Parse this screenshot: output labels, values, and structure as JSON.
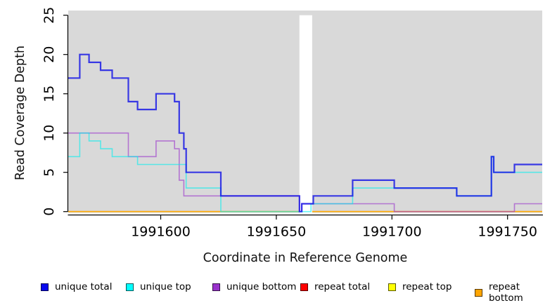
{
  "chart_data": {
    "type": "line",
    "subtype": "step-coverage-plot",
    "title": "",
    "xlabel": "Coordinate in Reference Genome",
    "ylabel": "Read Coverage Depth",
    "xlim": [
      1991560,
      1991765
    ],
    "ylim": [
      0,
      25
    ],
    "x_ticks": [
      1991600,
      1991650,
      1991700,
      1991750
    ],
    "y_ticks": [
      0,
      5,
      10,
      15,
      20,
      25
    ],
    "grid": false,
    "legend_position": "bottom",
    "plot_bg": "#d9d9d9",
    "axis_color": "#000000",
    "masked_region": {
      "x_start": 1991660,
      "x_end": 1991665.5,
      "color": "#ffffff"
    },
    "step_style": "post",
    "series": [
      {
        "name": "repeat total",
        "color": "#ee0000",
        "opacity": 0.6,
        "width": 1.6,
        "layer": 1,
        "steps": [
          [
            1991560,
            0
          ]
        ]
      },
      {
        "name": "repeat top",
        "color": "#ffff00",
        "opacity": 0.6,
        "width": 1.6,
        "layer": 1,
        "steps": [
          [
            1991560,
            0
          ]
        ]
      },
      {
        "name": "repeat bottom",
        "color": "#ffa500",
        "opacity": 0.75,
        "width": 1.6,
        "layer": 1,
        "steps": [
          [
            1991560,
            0
          ]
        ]
      },
      {
        "name": "unique bottom",
        "color": "#9932cc",
        "opacity": 0.6,
        "width": 1.6,
        "layer": 2,
        "steps": [
          [
            1991560,
            10
          ],
          [
            1991586,
            7
          ],
          [
            1991598,
            9
          ],
          [
            1991606,
            8
          ],
          [
            1991608,
            4
          ],
          [
            1991610,
            2
          ],
          [
            1991660,
            0
          ],
          [
            1991661,
            1
          ],
          [
            1991701,
            0
          ],
          [
            1991753,
            1
          ]
        ]
      },
      {
        "name": "unique top",
        "color": "#00eeee",
        "opacity": 0.6,
        "width": 1.6,
        "layer": 2,
        "steps": [
          [
            1991560,
            7
          ],
          [
            1991565,
            10
          ],
          [
            1991569,
            9
          ],
          [
            1991574,
            8
          ],
          [
            1991579,
            7
          ],
          [
            1991590,
            6
          ],
          [
            1991611,
            3
          ],
          [
            1991626,
            0
          ],
          [
            1991665,
            1
          ],
          [
            1991683,
            3
          ],
          [
            1991728,
            2
          ],
          [
            1991743,
            7
          ],
          [
            1991744,
            5
          ]
        ]
      },
      {
        "name": "unique total",
        "color": "#0f0fe6",
        "opacity": 0.8,
        "width": 2.2,
        "layer": 2,
        "steps": [
          [
            1991560,
            17
          ],
          [
            1991565,
            20
          ],
          [
            1991569,
            19
          ],
          [
            1991574,
            18
          ],
          [
            1991579,
            17
          ],
          [
            1991586,
            14
          ],
          [
            1991590,
            13
          ],
          [
            1991598,
            15
          ],
          [
            1991606,
            14
          ],
          [
            1991608,
            10
          ],
          [
            1991610,
            8
          ],
          [
            1991611,
            5
          ],
          [
            1991626,
            2
          ],
          [
            1991660,
            0
          ],
          [
            1991661,
            1
          ],
          [
            1991666,
            2
          ],
          [
            1991683,
            4
          ],
          [
            1991701,
            3
          ],
          [
            1991728,
            2
          ],
          [
            1991743,
            7
          ],
          [
            1991744,
            5
          ],
          [
            1991753,
            6
          ]
        ]
      }
    ],
    "legend": [
      {
        "label": "unique total",
        "color": "#0808ee"
      },
      {
        "label": "unique top",
        "color": "#00ffff"
      },
      {
        "label": "unique bottom",
        "color": "#9932cc"
      },
      {
        "label": "repeat total",
        "color": "#ff0000"
      },
      {
        "label": "repeat top",
        "color": "#ffff00"
      },
      {
        "label": "repeat bottom",
        "color": "#ffa500"
      }
    ]
  }
}
